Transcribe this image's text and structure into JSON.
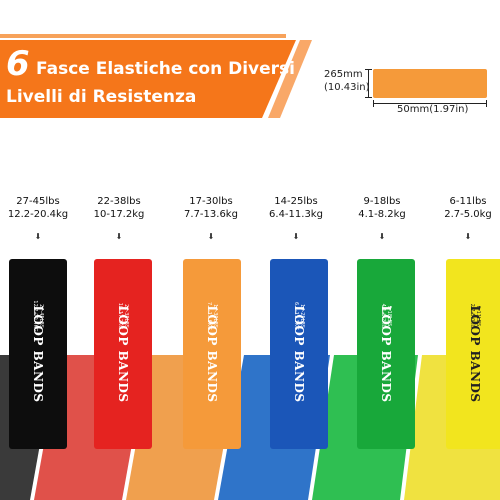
{
  "header": {
    "number": "6",
    "title_line1": "Fasce Elastiche con Diversi",
    "title_line2": "Livelli di Resistenza",
    "banner_color": "#f5761a"
  },
  "dimensions": {
    "length_mm": "265mm",
    "length_in": "(10.43in)",
    "width": "50mm(1.97in)"
  },
  "bands": [
    {
      "lbs": "27-45lbs",
      "kg": "12.2-20.4kg",
      "text": "LOOP BANDS",
      "small1": "27-45LBS",
      "small2": "12.2-20.4KG",
      "color": "#0d0d0d",
      "floor": "#3a3a3a",
      "text_color": "#ffffff"
    },
    {
      "lbs": "22-38lbs",
      "kg": "10-17.2kg",
      "text": "LOOP BANDS",
      "small1": "22-38LBS",
      "small2": "10-17.2KG",
      "color": "#e52320",
      "floor": "#e0514a",
      "text_color": "#ffffff"
    },
    {
      "lbs": "17-30lbs",
      "kg": "7.7-13.6kg",
      "text": "LOOP BANDS",
      "small1": "17-30LBS",
      "small2": "7.7-13.6KG",
      "color": "#f59a3a",
      "floor": "#f0a04e",
      "text_color": "#ffffff"
    },
    {
      "lbs": "14-25lbs",
      "kg": "6.4-11.3kg",
      "text": "LOOP BANDS",
      "small1": "14-25LBS",
      "small2": "6.4-11.3KG",
      "color": "#1b56b8",
      "floor": "#2f74c9",
      "text_color": "#ffffff"
    },
    {
      "lbs": "9-18lbs",
      "kg": "4.1-8.2kg",
      "text": "LOOP BANDS",
      "small1": "9-18LBS",
      "small2": "4.1-8.2KG",
      "color": "#18a83a",
      "floor": "#2fbf52",
      "text_color": "#ffffff"
    },
    {
      "lbs": "6-11lbs",
      "kg": "2.7-5.0kg",
      "text": "LOOP BANDS",
      "small1": "6-11LBS",
      "small2": "2.7-5.0KG",
      "color": "#f2e51e",
      "floor": "#f0e240",
      "text_color": "#222222"
    }
  ]
}
